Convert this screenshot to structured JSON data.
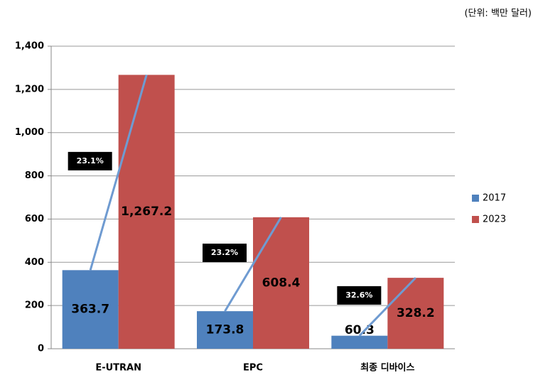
{
  "chart_data": {
    "type": "bar",
    "unit_note": "(단위: 백만 달러)",
    "categories": [
      "E-UTRAN",
      "EPC",
      "최종 디바이스"
    ],
    "series": [
      {
        "name": "2017",
        "color": "#4f81bd",
        "values": [
          363.7,
          173.8,
          60.3
        ],
        "value_labels": [
          "363.7",
          "173.8",
          "60.3"
        ]
      },
      {
        "name": "2023",
        "color": "#c0504d",
        "values": [
          1267.2,
          608.4,
          328.2
        ],
        "value_labels": [
          "1,267.2",
          "608.4",
          "328.2"
        ]
      }
    ],
    "growth_labels": [
      "23.1%",
      "23.2%",
      "32.6%"
    ],
    "growth_line_color": "#6f9bd1",
    "ylim": [
      0,
      1400
    ],
    "yticks": [
      0,
      200,
      400,
      600,
      800,
      {
        "value": 1000,
        "label": "1,000"
      },
      {
        "value": 1200,
        "label": "1,200"
      },
      {
        "value": 1400,
        "label": "1,400"
      }
    ],
    "grid": true,
    "legend": "right"
  }
}
